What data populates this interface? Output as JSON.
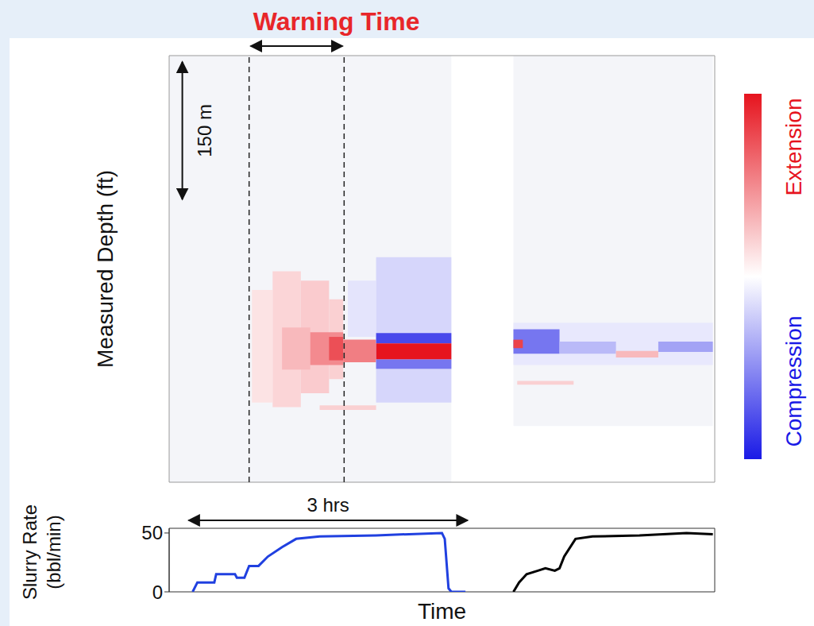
{
  "chart_data": [
    {
      "type": "heatmap",
      "ylabel": "Measured Depth (ft)",
      "xlim": [
        0,
        5.8
      ],
      "ylim": [
        0,
        455
      ],
      "tick_labels": false,
      "annotations": [
        {
          "text": "Warning Time",
          "x": [
            0.85,
            1.86
          ]
        }
      ],
      "vlines": [
        {
          "x": 0.85,
          "line_style": "dashed"
        },
        {
          "x": 1.86,
          "line_style": "dashed"
        }
      ],
      "scale_bar": {
        "text": "150 m",
        "t": 0.14,
        "depth": [
          5,
          155
        ]
      },
      "colorbar": {
        "range": [
          -1,
          1
        ],
        "low_label": "Compression",
        "high_label": "Extension",
        "colors": [
          "#1a1ae6",
          "#ffffff",
          "#e6141e"
        ]
      },
      "recorded": [
        {
          "t": [
            0,
            3.0
          ],
          "depth": [
            0,
            455
          ]
        },
        {
          "t": [
            3.66,
            5.78
          ],
          "depth": [
            0,
            395
          ]
        }
      ],
      "cells": [
        {
          "t": [
            0.88,
            1.1
          ],
          "depth": [
            250,
            370
          ],
          "value": 0.12
        },
        {
          "t": [
            1.1,
            1.4
          ],
          "depth": [
            230,
            375
          ],
          "value": 0.18
        },
        {
          "t": [
            1.4,
            1.7
          ],
          "depth": [
            240,
            360
          ],
          "value": 0.22
        },
        {
          "t": [
            1.7,
            1.85
          ],
          "depth": [
            260,
            345
          ],
          "value": 0.2
        },
        {
          "t": [
            1.2,
            1.5
          ],
          "depth": [
            290,
            335
          ],
          "value": 0.3
        },
        {
          "t": [
            1.5,
            1.85
          ],
          "depth": [
            295,
            330
          ],
          "value": 0.5
        },
        {
          "t": [
            1.7,
            1.85
          ],
          "depth": [
            300,
            325
          ],
          "value": 0.75
        },
        {
          "t": [
            1.9,
            2.2
          ],
          "depth": [
            240,
            300
          ],
          "value": -0.12
        },
        {
          "t": [
            1.85,
            2.2
          ],
          "depth": [
            303,
            327
          ],
          "value": 0.55
        },
        {
          "t": [
            1.6,
            2.2
          ],
          "depth": [
            373,
            378
          ],
          "value": 0.2
        },
        {
          "t": [
            2.2,
            3.0
          ],
          "depth": [
            215,
            370
          ],
          "value": -0.18
        },
        {
          "t": [
            2.2,
            3.0
          ],
          "depth": [
            296,
            307
          ],
          "value": -0.8
        },
        {
          "t": [
            2.2,
            3.0
          ],
          "depth": [
            307,
            324
          ],
          "value": 1.0
        },
        {
          "t": [
            2.2,
            3.0
          ],
          "depth": [
            324,
            334
          ],
          "value": -0.6
        },
        {
          "t": [
            3.66,
            5.78
          ],
          "depth": [
            285,
            330
          ],
          "value": -0.1
        },
        {
          "t": [
            3.66,
            4.15
          ],
          "depth": [
            292,
            318
          ],
          "value": -0.6
        },
        {
          "t": [
            3.66,
            3.76
          ],
          "depth": [
            303,
            312
          ],
          "value": 0.8
        },
        {
          "t": [
            4.15,
            4.75
          ],
          "depth": [
            305,
            318
          ],
          "value": -0.3
        },
        {
          "t": [
            3.7,
            4.3
          ],
          "depth": [
            347,
            351
          ],
          "value": 0.2
        },
        {
          "t": [
            4.75,
            5.2
          ],
          "depth": [
            315,
            322
          ],
          "value": 0.3
        },
        {
          "t": [
            5.2,
            5.78
          ],
          "depth": [
            305,
            316
          ],
          "value": -0.4
        }
      ]
    },
    {
      "type": "line",
      "xlabel": "Time",
      "ylabel": "Slurry Rate (bbl/min)",
      "xlim": [
        0,
        5.8
      ],
      "ylim": [
        0,
        54
      ],
      "yticks": [
        0,
        50
      ],
      "tick_labels": "y",
      "annotations": [
        {
          "text": "3 hrs",
          "x": [
            0.19,
            3.19
          ]
        }
      ],
      "series": [
        {
          "color": "#2040e0",
          "x": [
            0.25,
            0.3,
            0.48,
            0.5,
            0.7,
            0.72,
            0.8,
            0.85,
            0.95,
            1.05,
            1.2,
            1.35,
            1.6,
            2.2,
            2.9,
            2.93,
            2.97,
            3.0,
            3.15
          ],
          "values": [
            0,
            8,
            8,
            15,
            15,
            12,
            12,
            22,
            22,
            30,
            38,
            45,
            47,
            48,
            50,
            45,
            3,
            0,
            0
          ]
        },
        {
          "color": "#000000",
          "x": [
            3.66,
            3.72,
            3.8,
            3.92,
            4.0,
            4.1,
            4.15,
            4.2,
            4.32,
            4.5,
            5.0,
            5.5,
            5.78
          ],
          "values": [
            0,
            8,
            15,
            18,
            20,
            18,
            20,
            30,
            45,
            47,
            48,
            50,
            49
          ]
        }
      ]
    }
  ]
}
